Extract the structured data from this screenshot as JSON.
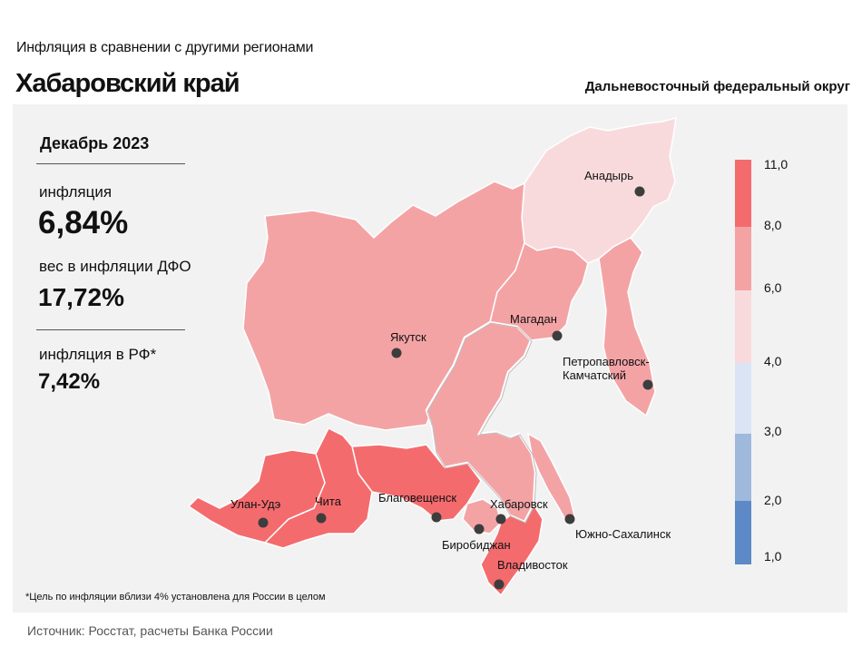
{
  "header": {
    "subtitle": "Инфляция в сравнении с другими регионами",
    "title": "Хабаровский край",
    "district": "Дальневосточный федеральный округ"
  },
  "stats": {
    "period": "Декабрь 2023",
    "inflation_label": "инфляция",
    "inflation_value": "6,84%",
    "weight_label": "вес в инфляции ДФО",
    "weight_value": "17,72%",
    "rf_label": "инфляция в РФ*",
    "rf_value": "7,42%"
  },
  "cities": [
    {
      "id": "anadyr",
      "label": "Анадырь"
    },
    {
      "id": "magadan",
      "label": "Магадан"
    },
    {
      "id": "yakutsk",
      "label": "Якутск"
    },
    {
      "id": "petropavlovsk",
      "label": "Петропавловск-Камчатский",
      "line1": "Петропавловск-",
      "line2": "Камчатский"
    },
    {
      "id": "ulan-ude",
      "label": "Улан-Удэ"
    },
    {
      "id": "chita",
      "label": "Чита"
    },
    {
      "id": "blagoveshchensk",
      "label": "Благовещенск"
    },
    {
      "id": "khabarovsk",
      "label": "Хабаровск"
    },
    {
      "id": "birobidzhan",
      "label": "Биробиджан"
    },
    {
      "id": "yuzhno",
      "label": "Южно-Сахалинск"
    },
    {
      "id": "vladivostok",
      "label": "Владивосток"
    }
  ],
  "legend": {
    "ticks": [
      "11,0",
      "8,0",
      "6,0",
      "4,0",
      "3,0",
      "2,0",
      "1,0"
    ],
    "colors": [
      "#f46b6e",
      "#f4a3a5",
      "#f9dadc",
      "#dae4f4",
      "#9fb9dc",
      "#5d89c6"
    ]
  },
  "colors": {
    "very_high": "#f46b6e",
    "high": "#f4a3a5",
    "medium": "#f9dadc",
    "panel": "#f2f2f2"
  },
  "footnote": "*Цель по инфляции вблизи 4% установлена для России в целом",
  "source": "Источник: Росстат, расчеты Банка России"
}
